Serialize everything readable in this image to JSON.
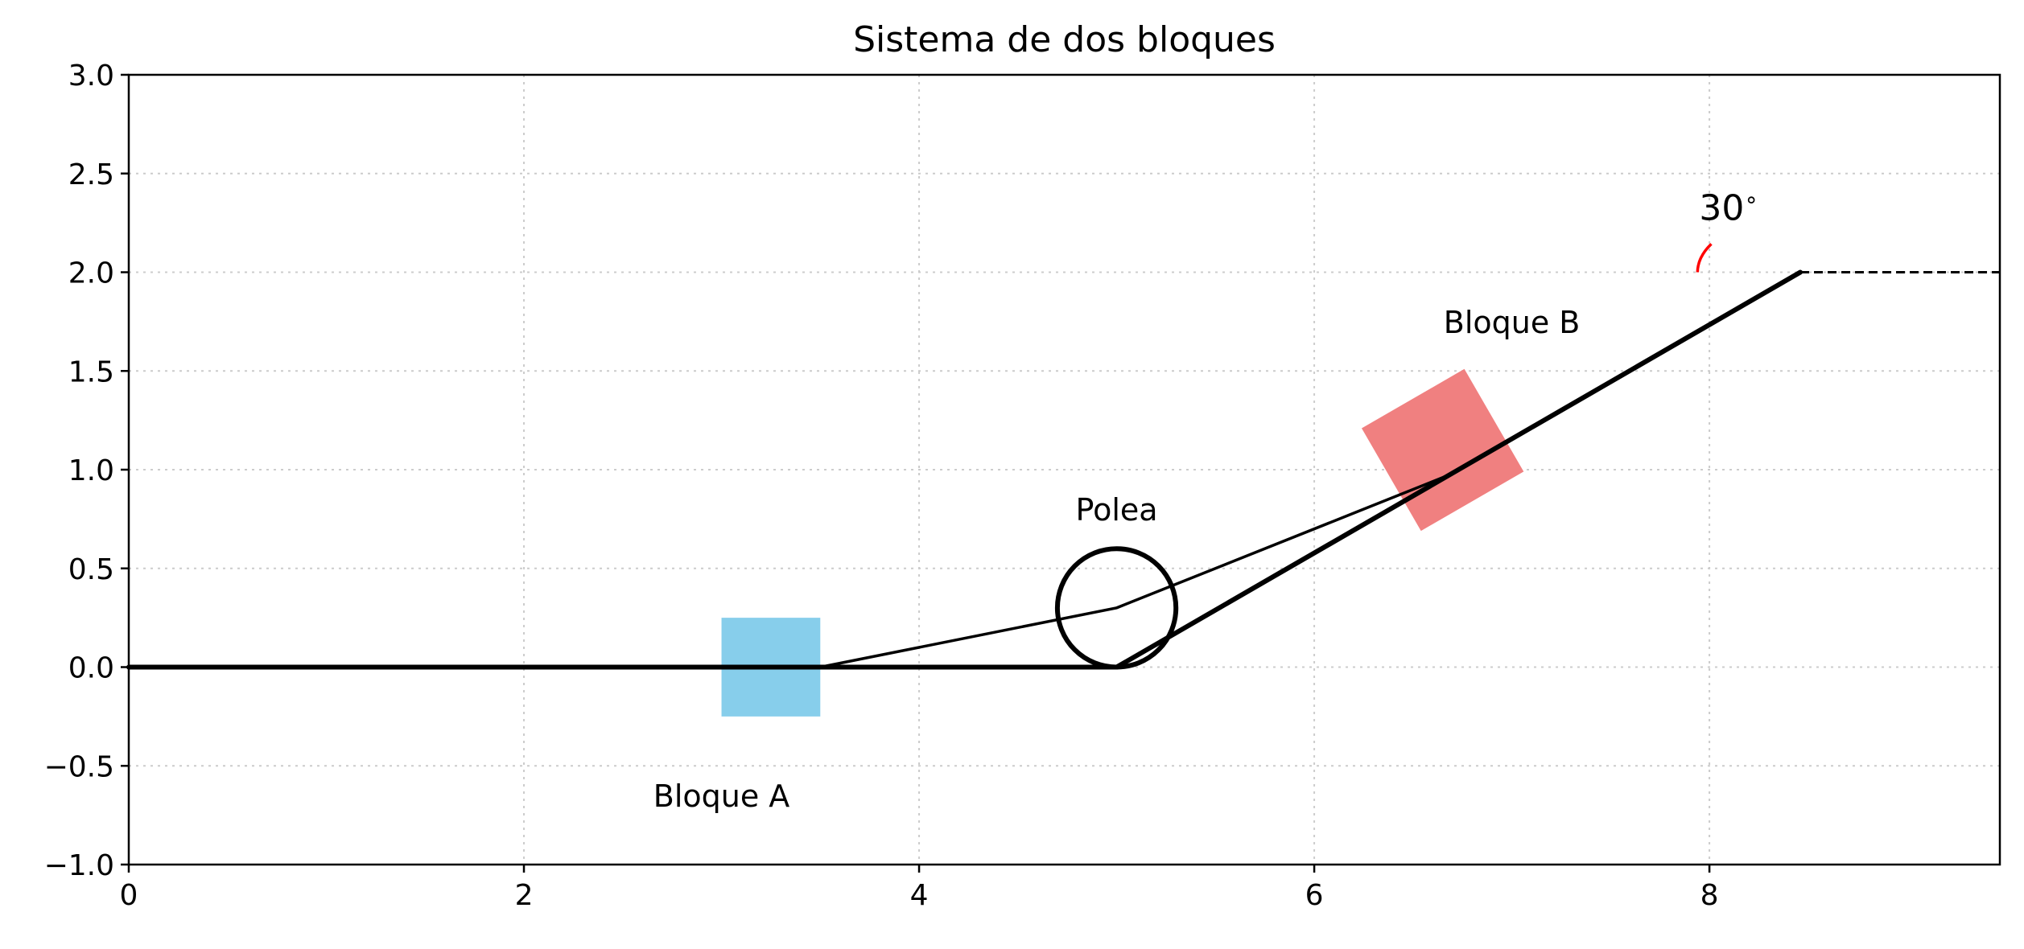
{
  "chart_data": {
    "type": "diagram",
    "title": "Sistema de dos bloques",
    "xlabel": "",
    "ylabel": "",
    "xlim": [
      0,
      9.47
    ],
    "ylim": [
      -1.0,
      3.0
    ],
    "grid": true,
    "x_ticks": [
      0,
      2,
      4,
      6,
      8
    ],
    "x_tick_labels": [
      "0",
      "2",
      "4",
      "6",
      "8"
    ],
    "y_ticks": [
      -1.0,
      -0.5,
      0.0,
      0.5,
      1.0,
      1.5,
      2.0,
      2.5,
      3.0
    ],
    "y_tick_labels": [
      "−1.0",
      "−0.5",
      "0.0",
      "0.5",
      "1.0",
      "1.5",
      "2.0",
      "2.5",
      "3.0"
    ],
    "colors": {
      "surface": "#000000",
      "block_a": "#87CEEB",
      "block_b": "#F08080",
      "angle": "#FF0000",
      "grid": "#CCCCCC"
    },
    "surfaces": [
      {
        "kind": "horizontal",
        "from": [
          0,
          0
        ],
        "to": [
          5,
          0
        ]
      },
      {
        "kind": "incline",
        "from": [
          5,
          0
        ],
        "to": [
          8.46,
          2.0
        ]
      },
      {
        "kind": "dashed-reference",
        "from": [
          8.46,
          2.0
        ],
        "to": [
          9.47,
          2.0
        ]
      }
    ],
    "pulley": {
      "center": [
        5.0,
        0.3
      ],
      "radius": 0.3,
      "label": "Polea",
      "label_pos": [
        5.0,
        0.8
      ]
    },
    "block_a": {
      "center": [
        3.25,
        0.0
      ],
      "width": 0.5,
      "height": 0.5,
      "label": "Bloque A",
      "label_pos": [
        3.0,
        -0.65
      ]
    },
    "block_b": {
      "center": [
        6.65,
        1.1
      ],
      "width": 0.6,
      "height": 0.6,
      "rotation_deg": 30,
      "label": "Bloque B",
      "label_pos": [
        7.0,
        1.75
      ]
    },
    "rope": [
      [
        3.5,
        0.0
      ],
      [
        5.0,
        0.3
      ],
      [
        6.7,
        0.98
      ]
    ],
    "angle": {
      "value_deg": 30,
      "label": "30$^\\circ$",
      "label_display": "30",
      "vertex": [
        8.46,
        2.0
      ],
      "arc_radius": 0.52
    }
  }
}
